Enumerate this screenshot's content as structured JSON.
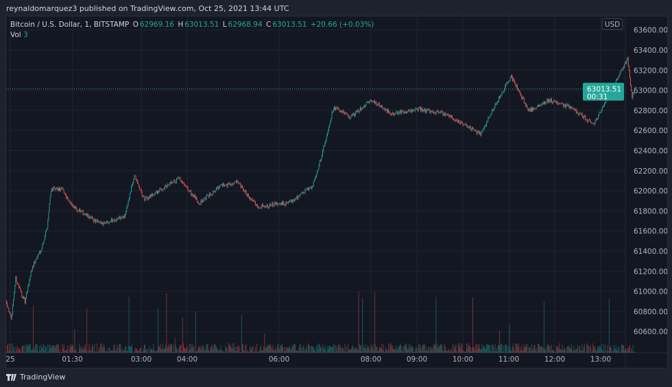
{
  "header": {
    "published": "reynaldomarquez3 published on TradingView.com, Oct 25, 2021 13:44 UTC"
  },
  "legend": {
    "symbol": "Bitcoin / U.S. Dollar, 1, BITSTAMP",
    "open_label": "O",
    "open": "62969.16",
    "high_label": "H",
    "high": "63013.51",
    "low_label": "L",
    "low": "62968.94",
    "close_label": "C",
    "close": "63013.51",
    "change": "+20.66 (+0.03%)",
    "vol_label": "Vol",
    "vol_value": "3"
  },
  "price_axis": {
    "currency": "USD",
    "last_price": "63013.51",
    "countdown": "00:31"
  },
  "footer": {
    "brand": "TradingView"
  },
  "colors": {
    "up": "#26a69a",
    "down": "#ef5350",
    "background": "#131722",
    "last_price": "#26a69a"
  },
  "chart_data": {
    "type": "candlestick",
    "interval": "1 minute",
    "y_ticks": [
      "63600.00",
      "63400.00",
      "63200.00",
      "63000.00",
      "62800.00",
      "62600.00",
      "62400.00",
      "62200.00",
      "62000.00",
      "61800.00",
      "61600.00",
      "61400.00",
      "61200.00",
      "61000.00",
      "60800.00",
      "60600.00"
    ],
    "x_ticks": [
      "25",
      "01:30",
      "03:00",
      "04:00",
      "06:00",
      "08:00",
      "09:00",
      "10:00",
      "11:00",
      "12:00",
      "13:00"
    ],
    "ylim": [
      60450,
      63700
    ],
    "approx_close_path": [
      [
        "00:04",
        60902
      ],
      [
        "00:10",
        60717
      ],
      [
        "00:16",
        61127
      ],
      [
        "00:28",
        60888
      ],
      [
        "00:37",
        61230
      ],
      [
        "00:50",
        61434
      ],
      [
        "00:57",
        61640
      ],
      [
        "01:02",
        62014
      ],
      [
        "01:17",
        62014
      ],
      [
        "01:30",
        61843
      ],
      [
        "02:06",
        61673
      ],
      [
        "02:38",
        61741
      ],
      [
        "02:51",
        62150
      ],
      [
        "03:04",
        61912
      ],
      [
        "03:49",
        62117
      ],
      [
        "04:16",
        61878
      ],
      [
        "04:43",
        62048
      ],
      [
        "05:05",
        62082
      ],
      [
        "05:32",
        61843
      ],
      [
        "06:12",
        61878
      ],
      [
        "06:44",
        62048
      ],
      [
        "06:57",
        62390
      ],
      [
        "07:11",
        62833
      ],
      [
        "07:33",
        62731
      ],
      [
        "08:00",
        62902
      ],
      [
        "08:27",
        62765
      ],
      [
        "09:03",
        62813
      ],
      [
        "09:38",
        62765
      ],
      [
        "10:23",
        62560
      ],
      [
        "10:41",
        62833
      ],
      [
        "11:03",
        63140
      ],
      [
        "11:26",
        62799
      ],
      [
        "11:53",
        62902
      ],
      [
        "12:20",
        62833
      ],
      [
        "12:51",
        62663
      ],
      [
        "13:35",
        63311
      ],
      [
        "13:41",
        62936
      ],
      [
        "13:44",
        63013.51
      ]
    ]
  }
}
